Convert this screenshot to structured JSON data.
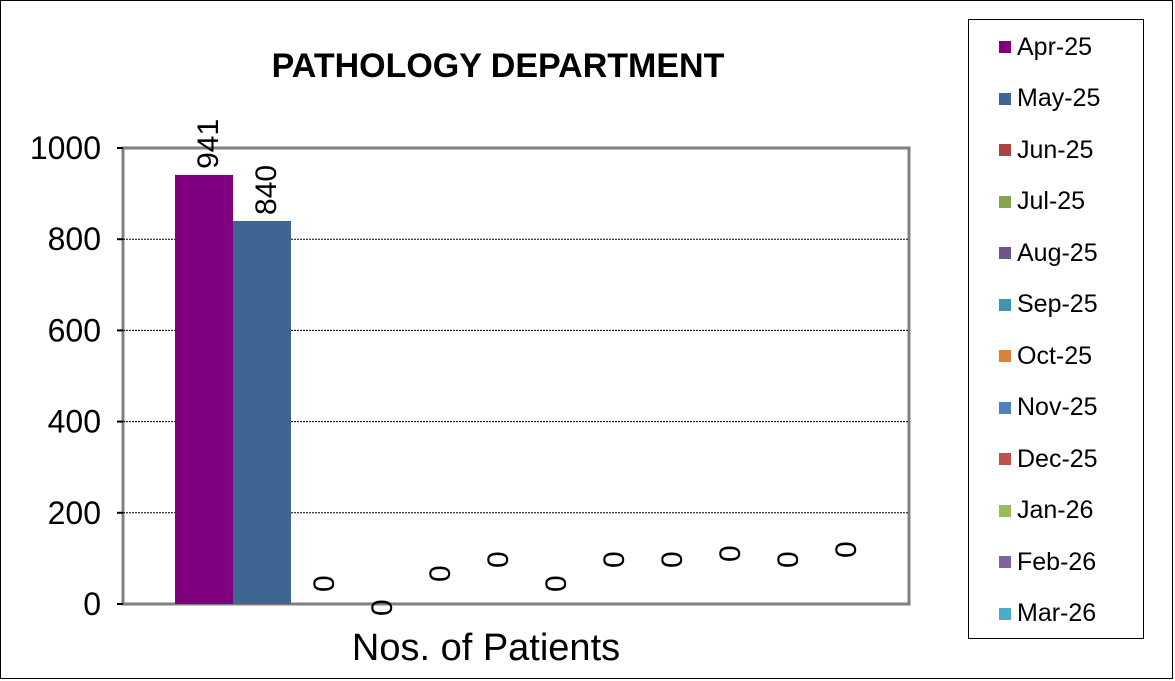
{
  "chart_data": {
    "type": "bar",
    "title": "PATHOLOGY DEPARTMENT",
    "xlabel": "Nos. of Patients",
    "ylabel": "",
    "categories": [
      "Nos. of Patients"
    ],
    "ylim": [
      0,
      1000
    ],
    "yticks": [
      0,
      200,
      400,
      600,
      800,
      1000
    ],
    "grid": true,
    "legend_position": "right",
    "series": [
      {
        "name": "Apr-25",
        "values": [
          941
        ],
        "label": "941",
        "color": "#800080"
      },
      {
        "name": "May-25",
        "values": [
          840
        ],
        "label": "840",
        "color": "#3F6592"
      },
      {
        "name": "Jun-25",
        "values": [
          0
        ],
        "label": "0",
        "color": "#A94643"
      },
      {
        "name": "Jul-25",
        "values": [
          0
        ],
        "label": "0",
        "color": "#86A44A"
      },
      {
        "name": "Aug-25",
        "values": [
          0
        ],
        "label": "0",
        "color": "#6E548D"
      },
      {
        "name": "Sep-25",
        "values": [
          0
        ],
        "label": "0",
        "color": "#3D96AE"
      },
      {
        "name": "Oct-25",
        "values": [
          0
        ],
        "label": "0",
        "color": "#DA8137"
      },
      {
        "name": "Nov-25",
        "values": [
          0
        ],
        "label": "0",
        "color": "#4F81BD"
      },
      {
        "name": "Dec-25",
        "values": [
          0
        ],
        "label": "0",
        "color": "#C0504D"
      },
      {
        "name": "Jan-26",
        "values": [
          0
        ],
        "label": "0",
        "color": "#9BBB59"
      },
      {
        "name": "Feb-26",
        "values": [
          0
        ],
        "label": "0",
        "color": "#8064A2"
      },
      {
        "name": "Mar-26",
        "values": [
          0
        ],
        "label": "0",
        "color": "#4BACC6"
      }
    ]
  }
}
